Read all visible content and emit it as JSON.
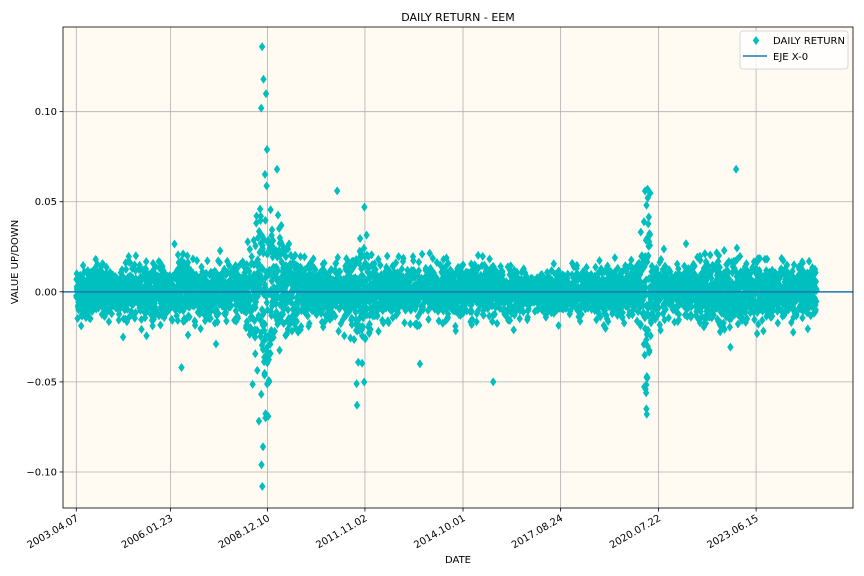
{
  "chart_data": {
    "type": "scatter",
    "title": "DAILY RETURN - EEM",
    "xlabel": "DATE",
    "ylabel": "VALUE UP/DOWN",
    "x_tick_labels": [
      "2003.04.07",
      "2006.01.23",
      "2008.12.10",
      "2011.11.02",
      "2014.10.01",
      "2017.08.24",
      "2020.07.22",
      "2023.06.15"
    ],
    "y_ticks": [
      -0.1,
      -0.05,
      0.0,
      0.05,
      0.1
    ],
    "y_tick_labels": [
      "−0.10",
      "−0.05",
      "0.00",
      "0.05",
      "0.10"
    ],
    "xlim": [
      "2002.11.14",
      "2026.05.01"
    ],
    "ylim": [
      -0.12,
      0.147
    ],
    "grid": true,
    "legend_position": "top-right",
    "background_color": "#fffbf3",
    "series": [
      {
        "name": "DAILY RETURN",
        "marker": "thin-diamond",
        "color": "#00bfbf",
        "date_range": [
          "2003.04.07",
          "2025.04.01"
        ],
        "notable_points": [
          {
            "x": "2008.10.13",
            "y": 0.136
          },
          {
            "x": "2008.10.28",
            "y": 0.118
          },
          {
            "x": "2008.11.24",
            "y": 0.11
          },
          {
            "x": "2008.10.03",
            "y": 0.102
          },
          {
            "x": "2008.12.05",
            "y": 0.079
          },
          {
            "x": "2009.03.23",
            "y": 0.068
          },
          {
            "x": "2011.01.05",
            "y": 0.056
          },
          {
            "x": "2011.10.27",
            "y": 0.047
          },
          {
            "x": "2020.03.24",
            "y": 0.057
          },
          {
            "x": "2020.03.13",
            "y": 0.048
          },
          {
            "x": "2022.11.10",
            "y": 0.068
          },
          {
            "x": "2008.10.15",
            "y": -0.108
          },
          {
            "x": "2008.10.06",
            "y": -0.096
          },
          {
            "x": "2008.10.22",
            "y": -0.086
          },
          {
            "x": "2008.11.19",
            "y": -0.07
          },
          {
            "x": "2008.12.01",
            "y": -0.069
          },
          {
            "x": "2011.08.08",
            "y": -0.063
          },
          {
            "x": "2011.08.04",
            "y": -0.051
          },
          {
            "x": "2015.08.24",
            "y": -0.05
          },
          {
            "x": "2020.03.16",
            "y": -0.068
          },
          {
            "x": "2020.03.12",
            "y": -0.065
          },
          {
            "x": "2020.03.09",
            "y": -0.056
          },
          {
            "x": "2020.03.18",
            "y": -0.047
          },
          {
            "x": "2006.05.22",
            "y": -0.042
          },
          {
            "x": "2013.06.20",
            "y": -0.04
          }
        ]
      },
      {
        "name": "EJE X-0",
        "type": "line",
        "color": "#1f77b4",
        "y": 0
      }
    ]
  }
}
